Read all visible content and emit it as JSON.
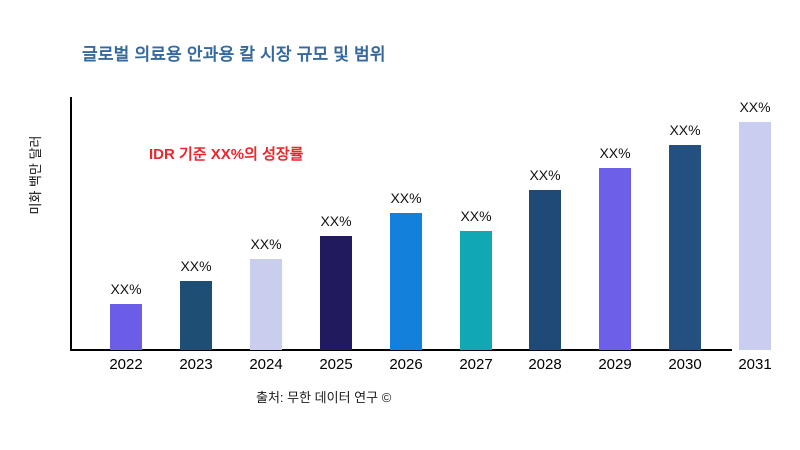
{
  "title": "글로벌 의료용 안과용 칼 시장 규모 및 범위",
  "annotation": "IDR 기준 XX%의 성장률",
  "y_axis_label": "미화 백만 달러",
  "source": "출처: 무한 데이터 연구 ©",
  "colors": {
    "title": "#36699e",
    "annotation": "#e8282c",
    "axis": "#000000",
    "label_text": "#111111"
  },
  "chart_data": {
    "type": "bar",
    "title": "글로벌 의료용 안과용 칼 시장 규모 및 범위",
    "xlabel": "",
    "ylabel": "미화 백만 달러",
    "categories": [
      "2022",
      "2023",
      "2024",
      "2025",
      "2026",
      "2027",
      "2028",
      "2029",
      "2030",
      "2031"
    ],
    "values": [
      46,
      69,
      91,
      114,
      137,
      119,
      160,
      182,
      205,
      228
    ],
    "value_note": "relative bar heights in pixels; no numeric y-axis ticks shown in chart",
    "bar_labels": [
      "XX%",
      "XX%",
      "XX%",
      "XX%",
      "XX%",
      "XX%",
      "XX%",
      "XX%",
      "XX%",
      "XX%"
    ],
    "bar_colors": [
      "#6c5de8",
      "#1f4e74",
      "#c9ceef",
      "#221a5e",
      "#1380dc",
      "#10a8b5",
      "#1f4a78",
      "#6e5fe9",
      "#24507f",
      "#c9cdef"
    ],
    "ylim": [
      0,
      255
    ],
    "grid": false,
    "legend": null,
    "annotation": "IDR 기준 XX%의 성장률",
    "source": "출처: 무한 데이터 연구 ©"
  }
}
